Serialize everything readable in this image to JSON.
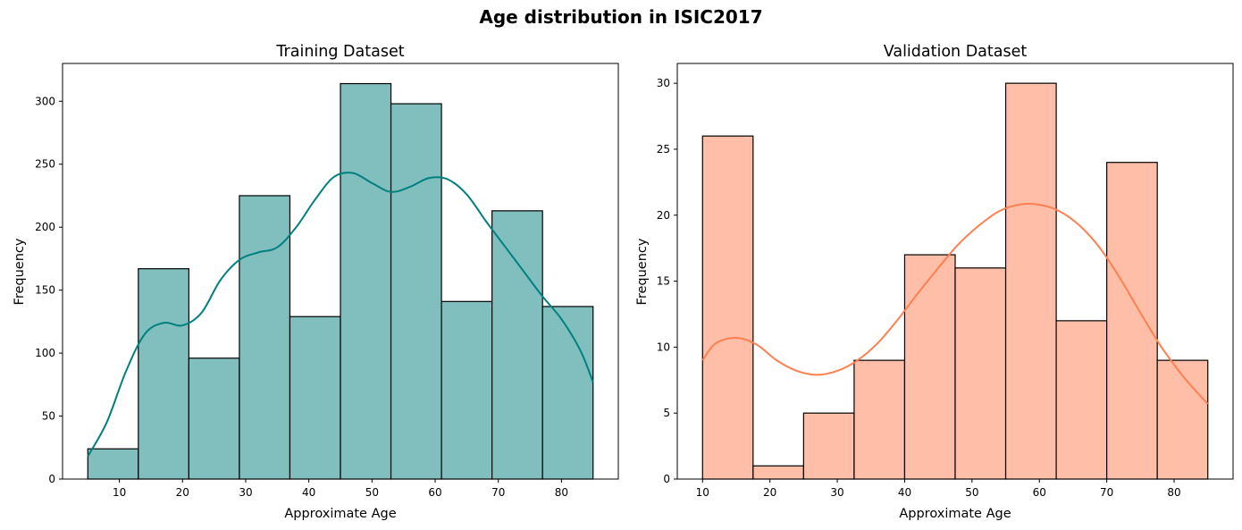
{
  "figure": {
    "title": "Age distribution in ISIC2017"
  },
  "chart_data": [
    {
      "type": "bar",
      "title": "Training Dataset",
      "xlabel": "Approximate Age",
      "ylabel": "Frequency",
      "xlim": [
        1,
        89
      ],
      "ylim": [
        0,
        330
      ],
      "xticks": [
        10,
        20,
        30,
        40,
        50,
        60,
        70,
        80
      ],
      "yticks": [
        0,
        50,
        100,
        150,
        200,
        250,
        300
      ],
      "bin_edges": [
        5,
        13,
        21,
        29,
        37,
        45,
        53,
        61,
        69,
        77,
        85
      ],
      "values": [
        24,
        167,
        96,
        225,
        129,
        314,
        298,
        141,
        213,
        137
      ],
      "bar_color": "#81bfbf",
      "edge_color": "#000000",
      "kde": {
        "color": "#008080",
        "x": [
          5,
          8,
          11,
          14,
          17,
          20,
          23,
          26,
          29,
          32,
          35,
          38,
          41,
          44,
          47,
          50,
          53,
          56,
          59,
          62,
          65,
          68,
          71,
          74,
          77,
          80,
          83,
          85
        ],
        "y": [
          18,
          45,
          85,
          115,
          124,
          122,
          132,
          158,
          174,
          180,
          184,
          200,
          222,
          240,
          243,
          235,
          228,
          232,
          239,
          238,
          226,
          205,
          185,
          165,
          145,
          127,
          102,
          77
        ]
      },
      "grid": false,
      "legend": "none"
    },
    {
      "type": "bar",
      "title": "Validation Dataset",
      "xlabel": "Approximate Age",
      "ylabel": "Frequency",
      "xlim": [
        6.25,
        88.75
      ],
      "ylim": [
        0,
        31.5
      ],
      "xticks": [
        10,
        20,
        30,
        40,
        50,
        60,
        70,
        80
      ],
      "yticks": [
        0,
        5,
        10,
        15,
        20,
        25,
        30
      ],
      "bin_edges": [
        10,
        17.5,
        25,
        32.5,
        40,
        47.5,
        55,
        62.5,
        70,
        77.5,
        85
      ],
      "values": [
        26,
        1,
        5,
        9,
        17,
        16,
        30,
        12,
        24,
        9
      ],
      "bar_color": "#ffbea8",
      "edge_color": "#000000",
      "kde": {
        "color": "#ff7f50",
        "x": [
          10,
          12,
          15,
          18,
          21,
          24,
          27,
          30,
          33,
          36,
          39,
          42,
          45,
          48,
          51,
          54,
          57,
          60,
          63,
          66,
          69,
          72,
          75,
          78,
          81,
          83,
          85
        ],
        "y": [
          9,
          10.3,
          10.7,
          10.2,
          9.0,
          8.2,
          7.9,
          8.2,
          9.0,
          10.3,
          12.1,
          14.1,
          16.0,
          17.8,
          19.2,
          20.3,
          20.8,
          20.8,
          20.3,
          19.2,
          17.5,
          15.2,
          12.6,
          10.1,
          8.0,
          6.8,
          5.7
        ]
      },
      "grid": false,
      "legend": "none"
    }
  ]
}
